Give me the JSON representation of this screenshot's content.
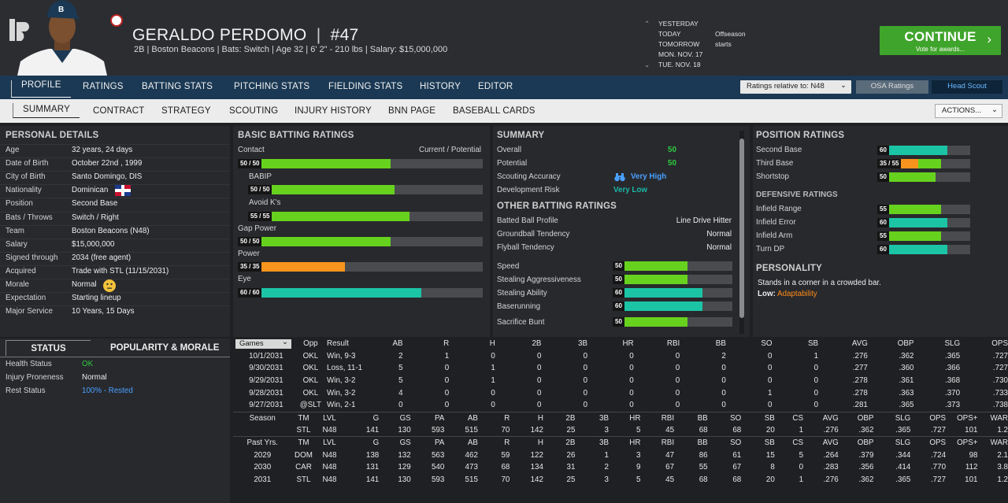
{
  "player": {
    "name": "GERALDO PERDOMO",
    "sep": "|",
    "number": "#47",
    "info": "2B | Boston Beacons  |  Bats: Switch  |  Age 32  |  6' 2\" - 210 lbs  |  Salary: $15,000,000"
  },
  "calendar": {
    "rows": [
      "YESTERDAY",
      "TODAY",
      "TOMORROW",
      "MON. NOV. 17",
      "TUE. NOV. 18"
    ],
    "event": "Offseason starts"
  },
  "continue": {
    "label": "CONTINUE",
    "sub": "Vote for awards..."
  },
  "nav": {
    "tabs": [
      "PROFILE",
      "RATINGS",
      "BATTING STATS",
      "PITCHING STATS",
      "FIELDING STATS",
      "HISTORY",
      "EDITOR"
    ],
    "rating_select": "Ratings relative to: N48",
    "osa": "OSA Ratings",
    "scout": "Head Scout"
  },
  "subnav": {
    "tabs": [
      "SUMMARY",
      "CONTRACT",
      "STRATEGY",
      "SCOUTING",
      "INJURY HISTORY",
      "BNN PAGE",
      "BASEBALL CARDS"
    ],
    "actions": "ACTIONS..."
  },
  "personal": {
    "title": "PERSONAL DETAILS",
    "rows": [
      {
        "label": "Age",
        "value": "32 years, 24 days"
      },
      {
        "label": "Date of Birth",
        "value": "October 22nd , 1999"
      },
      {
        "label": "City of Birth",
        "value": "Santo Domingo, DIS"
      },
      {
        "label": "Nationality",
        "value": "Dominican"
      },
      {
        "label": "Position",
        "value": "Second Base"
      },
      {
        "label": "Bats / Throws",
        "value": "Switch / Right"
      },
      {
        "label": "Team",
        "value": "Boston Beacons (N48)"
      },
      {
        "label": "Salary",
        "value": "$15,000,000"
      },
      {
        "label": "Signed through",
        "value": "2034 (free agent)"
      },
      {
        "label": "Acquired",
        "value": "Trade with STL (11/15/2031)"
      },
      {
        "label": "Morale",
        "value": "Normal"
      },
      {
        "label": "Expectation",
        "value": "Starting lineup"
      },
      {
        "label": "Major Service",
        "value": "10 Years, 15 Days"
      }
    ]
  },
  "status": {
    "tab_status": "STATUS",
    "tab_pop": "POPULARITY & MORALE",
    "rows": [
      {
        "label": "Health Status",
        "value": "OK",
        "color": "#2ecc40"
      },
      {
        "label": "Injury Proneness",
        "value": "Normal",
        "color": "#ededed"
      },
      {
        "label": "Rest Status",
        "value": "100% - Rested",
        "color": "#4aa0ff"
      }
    ]
  },
  "batting": {
    "title": "BASIC BATTING RATINGS",
    "cp_label": "Current / Potential",
    "rows": [
      {
        "label": "Contact",
        "text": "50 / 50",
        "value": 50,
        "color": "#66d21e"
      },
      {
        "label": "BABIP",
        "text": "50 / 50",
        "value": 50,
        "color": "#66d21e"
      },
      {
        "label": "Avoid K's",
        "text": "55 / 55",
        "value": 55,
        "color": "#66d21e"
      },
      {
        "label": "Gap Power",
        "text": "50 / 50",
        "value": 50,
        "color": "#66d21e"
      },
      {
        "label": "Power",
        "text": "35 / 35",
        "value": 35,
        "color": "#f7941d"
      },
      {
        "label": "Eye",
        "text": "60 / 60",
        "value": 60,
        "color": "#1cc4a6"
      }
    ]
  },
  "summary": {
    "title": "SUMMARY",
    "rows": [
      {
        "label": "Overall",
        "value": "50"
      },
      {
        "label": "Potential",
        "value": "50"
      },
      {
        "label": "Scouting Accuracy",
        "value": "Very High"
      },
      {
        "label": "Development Risk",
        "value": "Very Low"
      }
    ],
    "other_title": "OTHER BATTING RATINGS",
    "other": [
      {
        "label": "Batted Ball Profile",
        "value": "Line Drive Hitter"
      },
      {
        "label": "Groundball Tendency",
        "value": "Normal"
      },
      {
        "label": "Flyball Tendency",
        "value": "Normal"
      }
    ],
    "run_bars": [
      {
        "label": "Speed",
        "value": 50,
        "color": "#66d21e"
      },
      {
        "label": "Stealing Aggressiveness",
        "value": 50,
        "color": "#66d21e"
      },
      {
        "label": "Stealing Ability",
        "value": 60,
        "color": "#1cc4a6"
      },
      {
        "label": "Baserunning",
        "value": 60,
        "color": "#1cc4a6"
      },
      {
        "label": "Sacrifice Bunt",
        "value": 50,
        "color": "#66d21e"
      }
    ]
  },
  "position": {
    "title": "POSITION RATINGS",
    "rows": [
      {
        "label": "Second Base",
        "text": "60",
        "value": 60,
        "color": "#1cc4a6"
      },
      {
        "label": "Third Base",
        "text": "35 / 55",
        "value": 35,
        "potential": 55,
        "color": "#f7941d"
      },
      {
        "label": "Shortstop",
        "text": "50",
        "value": 50,
        "color": "#66d21e"
      }
    ],
    "def_title": "DEFENSIVE RATINGS",
    "def": [
      {
        "label": "Infield Range",
        "value": 55,
        "color": "#66d21e"
      },
      {
        "label": "Infield Error",
        "value": 60,
        "color": "#1cc4a6"
      },
      {
        "label": "Infield Arm",
        "value": 55,
        "color": "#66d21e"
      },
      {
        "label": "Turn DP",
        "value": 60,
        "color": "#1cc4a6"
      }
    ],
    "pers_title": "PERSONALITY",
    "pers_text": "Stands in a corner in a crowded bar.",
    "pers_low": "Low:",
    "pers_low_val": "Adaptability"
  },
  "games": {
    "select": "Games",
    "headers": [
      "Opp",
      "Result",
      "AB",
      "R",
      "H",
      "2B",
      "3B",
      "HR",
      "RBI",
      "BB",
      "SO",
      "SB",
      "AVG",
      "OBP",
      "SLG",
      "OPS"
    ],
    "rows": [
      [
        "10/1/2031",
        "OKL",
        "Win, 9-3",
        "2",
        "1",
        "0",
        "0",
        "0",
        "0",
        "0",
        "2",
        "0",
        "1",
        ".276",
        ".362",
        ".365",
        ".727"
      ],
      [
        "9/30/2031",
        "OKL",
        "Loss, 11-1",
        "5",
        "0",
        "1",
        "0",
        "0",
        "0",
        "0",
        "0",
        "0",
        "0",
        ".277",
        ".360",
        ".366",
        ".727"
      ],
      [
        "9/29/2031",
        "OKL",
        "Win, 3-2",
        "5",
        "0",
        "1",
        "0",
        "0",
        "0",
        "0",
        "0",
        "0",
        "0",
        ".278",
        ".361",
        ".368",
        ".730"
      ],
      [
        "9/28/2031",
        "OKL",
        "Win, 3-2",
        "4",
        "0",
        "0",
        "0",
        "0",
        "0",
        "0",
        "0",
        "1",
        "0",
        ".278",
        ".363",
        ".370",
        ".733"
      ],
      [
        "9/27/2031",
        "@SLT",
        "Win, 2-1",
        "0",
        "0",
        "0",
        "0",
        "0",
        "0",
        "0",
        "0",
        "0",
        "0",
        ".281",
        ".365",
        ".373",
        ".738"
      ]
    ],
    "season_headers": [
      "Season",
      "TM",
      "LVL",
      "G",
      "GS",
      "PA",
      "AB",
      "R",
      "H",
      "2B",
      "3B",
      "HR",
      "RBI",
      "BB",
      "SO",
      "SB",
      "CS",
      "AVG",
      "OBP",
      "SLG",
      "OPS",
      "OPS+",
      "WAR"
    ],
    "season_row": [
      "",
      "STL",
      "N48",
      "141",
      "130",
      "593",
      "515",
      "70",
      "142",
      "25",
      "3",
      "5",
      "45",
      "68",
      "68",
      "20",
      "1",
      ".276",
      ".362",
      ".365",
      ".727",
      "101",
      "1.2"
    ],
    "past_headers": [
      "Past Yrs.",
      "TM",
      "LVL",
      "G",
      "GS",
      "PA",
      "AB",
      "R",
      "H",
      "2B",
      "3B",
      "HR",
      "RBI",
      "BB",
      "SO",
      "SB",
      "CS",
      "AVG",
      "OBP",
      "SLG",
      "OPS",
      "OPS+",
      "WAR"
    ],
    "past_rows": [
      [
        "2029",
        "DOM",
        "N48",
        "138",
        "132",
        "563",
        "462",
        "59",
        "122",
        "26",
        "1",
        "3",
        "47",
        "86",
        "61",
        "15",
        "5",
        ".264",
        ".379",
        ".344",
        ".724",
        "98",
        "2.1"
      ],
      [
        "2030",
        "CAR",
        "N48",
        "131",
        "129",
        "540",
        "473",
        "68",
        "134",
        "31",
        "2",
        "9",
        "67",
        "55",
        "67",
        "8",
        "0",
        ".283",
        ".356",
        ".414",
        ".770",
        "112",
        "3.8"
      ],
      [
        "2031",
        "STL",
        "N48",
        "141",
        "130",
        "593",
        "515",
        "70",
        "142",
        "25",
        "3",
        "5",
        "45",
        "68",
        "68",
        "20",
        "1",
        ".276",
        ".362",
        ".365",
        ".727",
        "101",
        "1.2"
      ]
    ]
  }
}
